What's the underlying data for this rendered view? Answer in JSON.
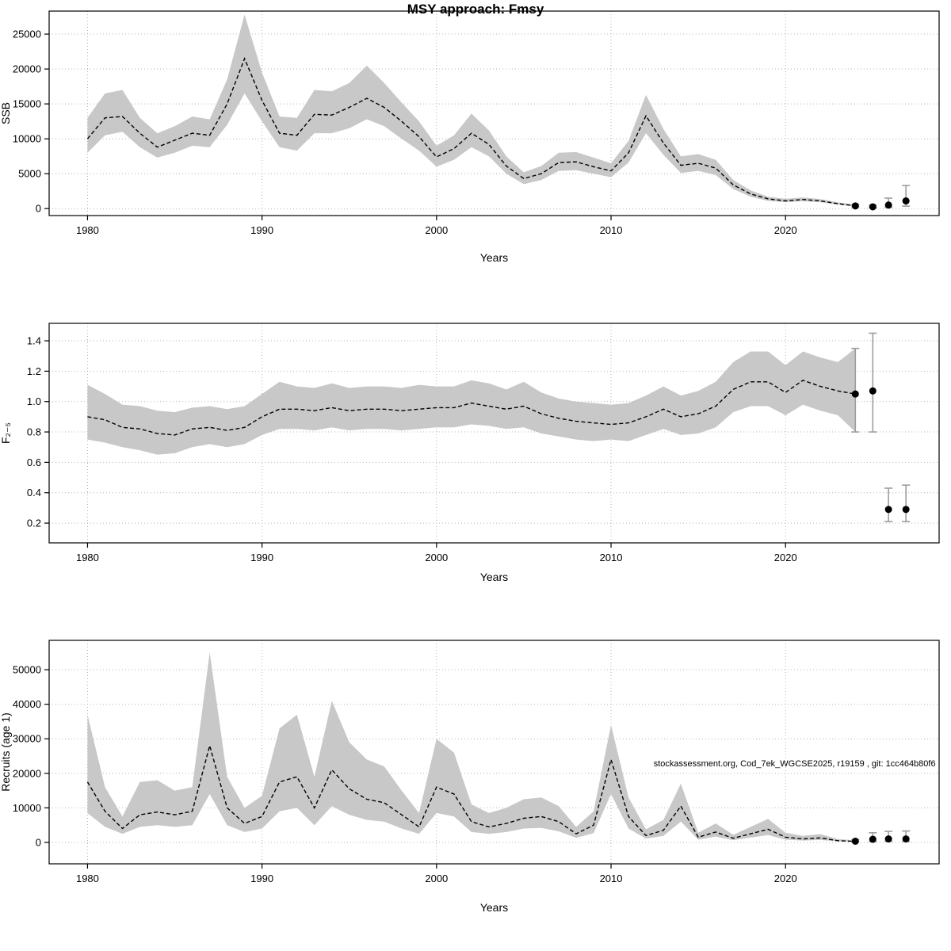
{
  "page_title": "MSY approach: Fmsy",
  "colors": {
    "band": "#c8c8c8",
    "line": "#000000",
    "grid": "#b4b4b4",
    "error_bar": "#9e9e9e",
    "point": "#000000",
    "axis": "#000000"
  },
  "chart_data": [
    {
      "type": "area",
      "title": "MSY approach: Fmsy",
      "xlabel": "Years",
      "ylabel": "SSB",
      "xlim": [
        1977.8,
        2028.8
      ],
      "ylim": [
        -1000,
        28300
      ],
      "xticks": [
        1980,
        1990,
        2000,
        2010,
        2020
      ],
      "xtick_labels": [
        "1980",
        "1990",
        "2000",
        "2010",
        "2020"
      ],
      "ytick_vals": [
        0,
        5000,
        10000,
        15000,
        20000,
        25000
      ],
      "ytick_labels": [
        "0",
        "5000",
        "10000",
        "15000",
        "20000",
        "25000"
      ],
      "x": [
        1980,
        1981,
        1982,
        1983,
        1984,
        1985,
        1986,
        1987,
        1988,
        1989,
        1990,
        1991,
        1992,
        1993,
        1994,
        1995,
        1996,
        1997,
        1998,
        1999,
        2000,
        2001,
        2002,
        2003,
        2004,
        2005,
        2006,
        2007,
        2008,
        2009,
        2010,
        2011,
        2012,
        2013,
        2014,
        2015,
        2016,
        2017,
        2018,
        2019,
        2020,
        2021,
        2022,
        2023,
        2024
      ],
      "mean": [
        10000,
        13000,
        13200,
        10800,
        8800,
        9800,
        10800,
        10500,
        15000,
        21500,
        15500,
        10800,
        10500,
        13500,
        13400,
        14500,
        15800,
        14500,
        12500,
        10300,
        7400,
        8600,
        10800,
        9200,
        6100,
        4300,
        5000,
        6600,
        6700,
        6000,
        5400,
        8000,
        13300,
        9400,
        6200,
        6500,
        5800,
        3400,
        2100,
        1400,
        1100,
        1300,
        1100,
        700,
        400
      ],
      "lower": [
        8000,
        10500,
        11000,
        8800,
        7300,
        8000,
        9000,
        8800,
        12000,
        16500,
        12500,
        8800,
        8300,
        10800,
        10800,
        11500,
        12800,
        11800,
        10000,
        8300,
        6000,
        7000,
        8800,
        7500,
        5000,
        3500,
        4100,
        5400,
        5500,
        5000,
        4500,
        6600,
        10800,
        7700,
        5100,
        5400,
        4800,
        2800,
        1700,
        1100,
        900,
        1050,
        900,
        550,
        300
      ],
      "upper": [
        13000,
        16500,
        17000,
        13000,
        10800,
        11800,
        13200,
        12800,
        18500,
        27800,
        19500,
        13200,
        13000,
        17000,
        16800,
        18000,
        20500,
        18000,
        15200,
        12500,
        9000,
        10500,
        13600,
        11200,
        7500,
        5200,
        6100,
        8000,
        8100,
        7300,
        6500,
        9700,
        16300,
        11400,
        7500,
        7800,
        7000,
        4100,
        2600,
        1700,
        1400,
        1600,
        1350,
        900,
        550
      ],
      "forecast": [
        {
          "x": 2024.0,
          "y": 380,
          "lo": 250,
          "hi": 600
        },
        {
          "x": 2025.0,
          "y": 250,
          "lo": 150,
          "hi": 500
        },
        {
          "x": 2025.9,
          "y": 500,
          "lo": 200,
          "hi": 1500
        },
        {
          "x": 2026.9,
          "y": 1100,
          "lo": 350,
          "hi": 3300
        }
      ]
    },
    {
      "type": "area",
      "title": "",
      "xlabel": "Years",
      "ylabel": "F₂₋₅",
      "xlim": [
        1977.8,
        2028.8
      ],
      "ylim": [
        0.07,
        1.515
      ],
      "xticks": [
        1980,
        1990,
        2000,
        2010,
        2020
      ],
      "xtick_labels": [
        "1980",
        "1990",
        "2000",
        "2010",
        "2020"
      ],
      "ytick_vals": [
        0.2,
        0.4,
        0.6,
        0.8,
        1.0,
        1.2,
        1.4
      ],
      "ytick_labels": [
        "0.2",
        "0.4",
        "0.6",
        "0.8",
        "1.0",
        "1.2",
        "1.4"
      ],
      "x": [
        1980,
        1981,
        1982,
        1983,
        1984,
        1985,
        1986,
        1987,
        1988,
        1989,
        1990,
        1991,
        1992,
        1993,
        1994,
        1995,
        1996,
        1997,
        1998,
        1999,
        2000,
        2001,
        2002,
        2003,
        2004,
        2005,
        2006,
        2007,
        2008,
        2009,
        2010,
        2011,
        2012,
        2013,
        2014,
        2015,
        2016,
        2017,
        2018,
        2019,
        2020,
        2021,
        2022,
        2023,
        2024
      ],
      "mean": [
        0.9,
        0.88,
        0.83,
        0.82,
        0.79,
        0.78,
        0.82,
        0.83,
        0.81,
        0.83,
        0.9,
        0.95,
        0.95,
        0.94,
        0.96,
        0.94,
        0.95,
        0.95,
        0.94,
        0.95,
        0.96,
        0.96,
        0.99,
        0.97,
        0.95,
        0.97,
        0.92,
        0.89,
        0.87,
        0.86,
        0.85,
        0.86,
        0.9,
        0.95,
        0.9,
        0.92,
        0.97,
        1.08,
        1.13,
        1.13,
        1.06,
        1.14,
        1.1,
        1.07,
        1.05
      ],
      "lower": [
        0.75,
        0.73,
        0.7,
        0.68,
        0.65,
        0.66,
        0.7,
        0.72,
        0.7,
        0.72,
        0.78,
        0.82,
        0.82,
        0.81,
        0.83,
        0.81,
        0.82,
        0.82,
        0.81,
        0.82,
        0.83,
        0.83,
        0.85,
        0.84,
        0.82,
        0.83,
        0.79,
        0.77,
        0.75,
        0.74,
        0.75,
        0.74,
        0.78,
        0.82,
        0.78,
        0.79,
        0.83,
        0.93,
        0.97,
        0.97,
        0.91,
        0.98,
        0.94,
        0.91,
        0.8
      ],
      "upper": [
        1.11,
        1.05,
        0.98,
        0.97,
        0.94,
        0.93,
        0.96,
        0.97,
        0.95,
        0.97,
        1.05,
        1.13,
        1.1,
        1.09,
        1.12,
        1.09,
        1.1,
        1.1,
        1.09,
        1.11,
        1.1,
        1.1,
        1.14,
        1.12,
        1.08,
        1.13,
        1.06,
        1.02,
        1.0,
        0.99,
        0.98,
        0.99,
        1.04,
        1.1,
        1.04,
        1.07,
        1.13,
        1.26,
        1.33,
        1.33,
        1.24,
        1.33,
        1.29,
        1.26,
        1.35
      ],
      "forecast": [
        {
          "x": 2024.0,
          "y": 1.05,
          "lo": 0.8,
          "hi": 1.35
        },
        {
          "x": 2025.0,
          "y": 1.07,
          "lo": 0.8,
          "hi": 1.45
        },
        {
          "x": 2025.9,
          "y": 0.29,
          "lo": 0.21,
          "hi": 0.43
        },
        {
          "x": 2026.9,
          "y": 0.29,
          "lo": 0.21,
          "hi": 0.45
        }
      ]
    },
    {
      "type": "area",
      "title": "",
      "xlabel": "Years",
      "ylabel": "Recruits (age 1)",
      "xlim": [
        1977.8,
        2028.8
      ],
      "ylim": [
        -6200,
        58500
      ],
      "xticks": [
        1980,
        1990,
        2000,
        2010,
        2020
      ],
      "xtick_labels": [
        "1980",
        "1990",
        "2000",
        "2010",
        "2020"
      ],
      "ytick_vals": [
        0,
        10000,
        20000,
        30000,
        40000,
        50000
      ],
      "ytick_labels": [
        "0",
        "10000",
        "20000",
        "30000",
        "40000",
        "50000"
      ],
      "x": [
        1980,
        1981,
        1982,
        1983,
        1984,
        1985,
        1986,
        1987,
        1988,
        1989,
        1990,
        1991,
        1992,
        1993,
        1994,
        1995,
        1996,
        1997,
        1998,
        1999,
        2000,
        2001,
        2002,
        2003,
        2004,
        2005,
        2006,
        2007,
        2008,
        2009,
        2010,
        2011,
        2012,
        2013,
        2014,
        2015,
        2016,
        2017,
        2018,
        2019,
        2020,
        2021,
        2022,
        2023,
        2024
      ],
      "mean": [
        17500,
        9000,
        4000,
        8000,
        8800,
        8000,
        9000,
        28000,
        10000,
        5500,
        7500,
        17500,
        19000,
        10000,
        21000,
        15500,
        12500,
        11500,
        8000,
        4500,
        16000,
        14000,
        6000,
        4500,
        5500,
        7000,
        7500,
        6000,
        2500,
        5000,
        24000,
        7500,
        2000,
        3500,
        10500,
        1500,
        3000,
        1200,
        2500,
        3800,
        1500,
        1000,
        1300,
        500,
        300
      ],
      "lower": [
        8500,
        4500,
        2500,
        4500,
        5000,
        4500,
        5000,
        14000,
        5000,
        3000,
        4000,
        9000,
        10000,
        5000,
        10500,
        8000,
        6500,
        6000,
        4000,
        2500,
        8500,
        7500,
        3000,
        2500,
        3000,
        4000,
        4200,
        3200,
        1300,
        2700,
        14000,
        4000,
        1100,
        1900,
        6000,
        800,
        1700,
        650,
        1400,
        2100,
        800,
        550,
        700,
        280,
        150
      ],
      "upper": [
        37000,
        16000,
        7500,
        17500,
        18000,
        15000,
        16000,
        55000,
        19000,
        10000,
        13500,
        33000,
        37000,
        19000,
        41000,
        29000,
        24000,
        22000,
        15000,
        8500,
        30000,
        26000,
        11000,
        8500,
        10000,
        12500,
        13000,
        10500,
        4500,
        9000,
        34000,
        13000,
        3800,
        6500,
        17000,
        2800,
        5500,
        2200,
        4500,
        6800,
        2800,
        1900,
        2400,
        950,
        600
      ],
      "forecast": [
        {
          "x": 2024.0,
          "y": 350,
          "lo": 150,
          "hi": 800
        },
        {
          "x": 2025.0,
          "y": 900,
          "lo": 300,
          "hi": 2800
        },
        {
          "x": 2025.9,
          "y": 1000,
          "lo": 300,
          "hi": 3200
        },
        {
          "x": 2026.9,
          "y": 1000,
          "lo": 300,
          "hi": 3300
        }
      ],
      "annotation": {
        "text": "stockassessment.org, Cod_7ek_WGCSE2025, r19159 , git: 1cc464b80f6",
        "x": 2028.6,
        "y": 22000
      }
    }
  ]
}
